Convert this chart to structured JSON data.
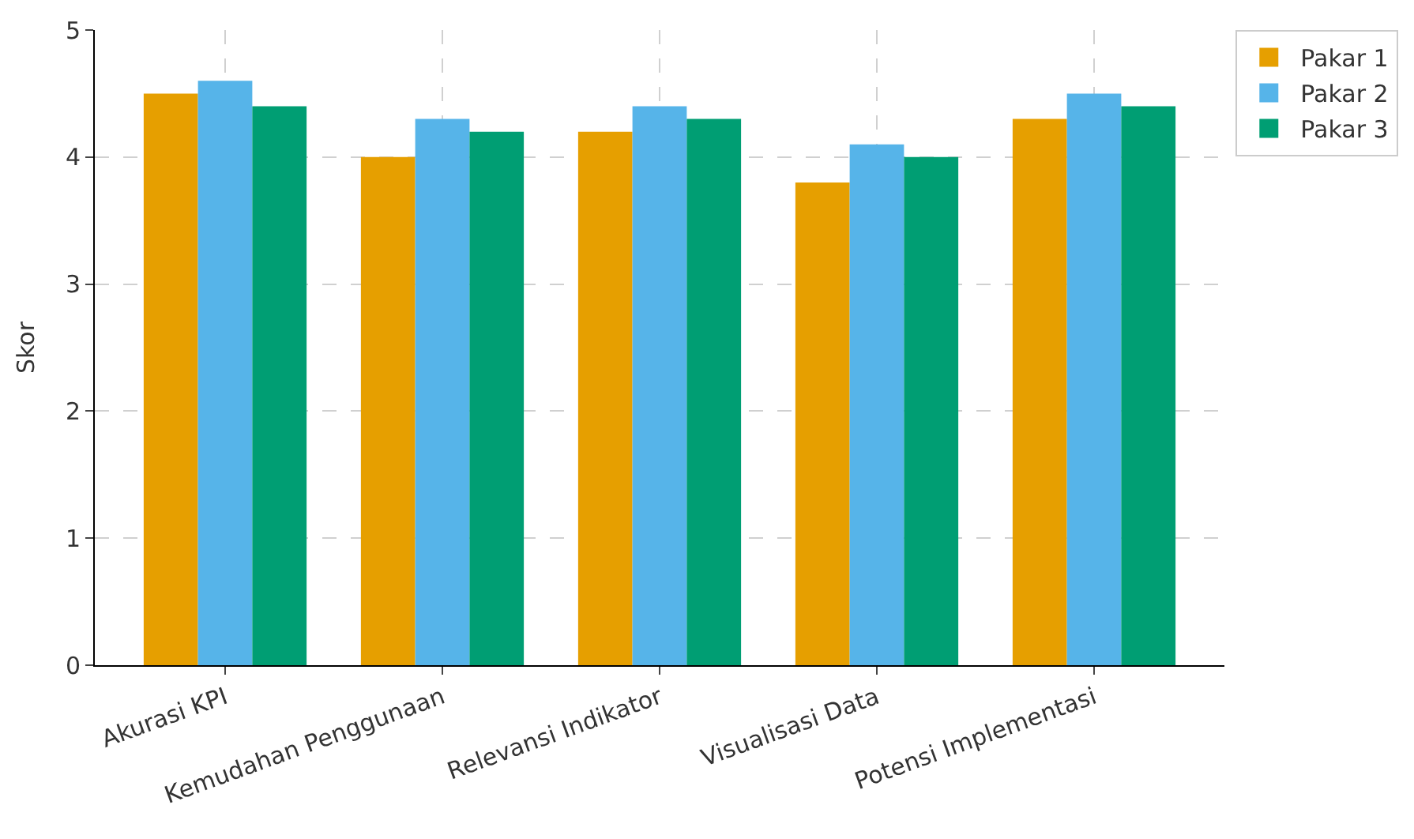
{
  "chart_data": {
    "type": "bar",
    "ylabel": "Skor",
    "categories": [
      "Akurasi KPI",
      "Kemudahan Penggunaan",
      "Relevansi Indikator",
      "Visualisasi Data",
      "Potensi Implementasi"
    ],
    "series": [
      {
        "name": "Pakar 1",
        "color": "#e69f00",
        "values": [
          4.5,
          4.0,
          4.2,
          3.8,
          4.3
        ]
      },
      {
        "name": "Pakar 2",
        "color": "#56b4e9",
        "values": [
          4.6,
          4.3,
          4.4,
          4.1,
          4.5
        ]
      },
      {
        "name": "Pakar 3",
        "color": "#009e73",
        "values": [
          4.4,
          4.2,
          4.3,
          4.0,
          4.4
        ]
      }
    ],
    "ylim": [
      0,
      5
    ],
    "yticks": [
      0,
      1,
      2,
      3,
      4,
      5
    ],
    "grid": true,
    "legend": "top right"
  }
}
